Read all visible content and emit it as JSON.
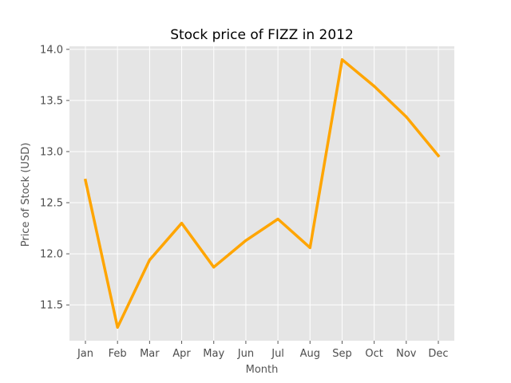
{
  "chart_data": {
    "type": "line",
    "title": "Stock price of FIZZ in 2012",
    "xlabel": "Month",
    "ylabel": "Price of Stock (USD)",
    "categories": [
      "Jan",
      "Feb",
      "Mar",
      "Apr",
      "May",
      "Jun",
      "Jul",
      "Aug",
      "Sep",
      "Oct",
      "Nov",
      "Dec"
    ],
    "series": [
      {
        "values": [
          12.72,
          11.28,
          11.94,
          12.3,
          11.87,
          12.13,
          12.34,
          12.06,
          13.9,
          13.64,
          13.34,
          12.96
        ],
        "color": "#ffa500"
      }
    ],
    "ylim": [
      11.15,
      14.03
    ],
    "yticks": [
      11.5,
      12.0,
      12.5,
      13.0,
      13.5,
      14.0
    ],
    "ytick_labels": [
      "11.5",
      "12.0",
      "12.5",
      "13.0",
      "13.5",
      "14.0"
    ],
    "grid": true,
    "background_color": "#e5e5e5",
    "grid_color": "#ffffff"
  }
}
